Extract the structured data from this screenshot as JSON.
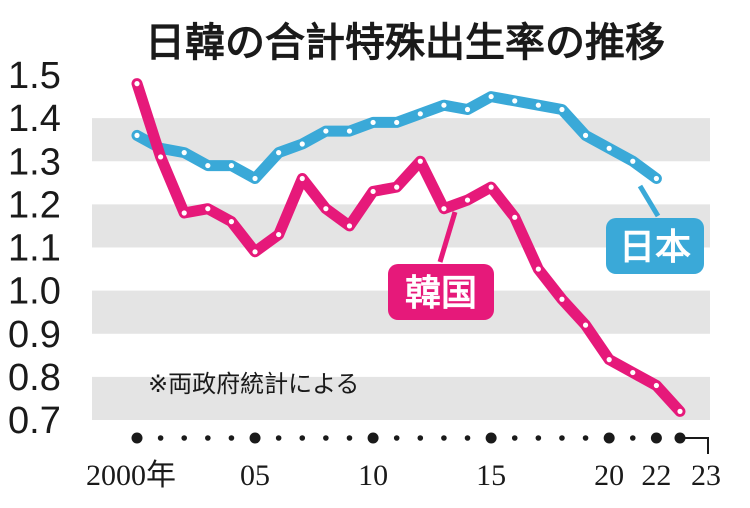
{
  "title": "日韓の合計特殊出生率の推移",
  "note": "※両政府統計による",
  "colors": {
    "japan": "#3aa9d8",
    "korea": "#e6197a",
    "band": "#e4e4e4",
    "text": "#1a1a1a"
  },
  "chart_data": {
    "type": "line",
    "title": "日韓の合計特殊出生率の推移",
    "xlabel": "",
    "ylabel": "",
    "ylim": [
      0.7,
      1.5
    ],
    "xlim": [
      2000,
      2023
    ],
    "yticks": [
      "1.5",
      "1.4",
      "1.3",
      "1.2",
      "1.1",
      "1.0",
      "0.9",
      "0.8",
      "0.7"
    ],
    "xticks": [
      {
        "year": 2000,
        "label": "2000年"
      },
      {
        "year": 2005,
        "label": "05"
      },
      {
        "year": 2010,
        "label": "10"
      },
      {
        "year": 2015,
        "label": "15"
      },
      {
        "year": 2020,
        "label": "20"
      },
      {
        "year": 2022,
        "label": "22"
      },
      {
        "year": 2023,
        "label": "23"
      }
    ],
    "grid": "alternating horizontal bands",
    "series": [
      {
        "name": "日本",
        "color": "#3aa9d8",
        "x": [
          2000,
          2001,
          2002,
          2003,
          2004,
          2005,
          2006,
          2007,
          2008,
          2009,
          2010,
          2011,
          2012,
          2013,
          2014,
          2015,
          2016,
          2017,
          2018,
          2019,
          2020,
          2021,
          2022
        ],
        "values": [
          1.36,
          1.33,
          1.32,
          1.29,
          1.29,
          1.26,
          1.32,
          1.34,
          1.37,
          1.37,
          1.39,
          1.39,
          1.41,
          1.43,
          1.42,
          1.45,
          1.44,
          1.43,
          1.42,
          1.36,
          1.33,
          1.3,
          1.26
        ]
      },
      {
        "name": "韓国",
        "color": "#e6197a",
        "x": [
          2000,
          2001,
          2002,
          2003,
          2004,
          2005,
          2006,
          2007,
          2008,
          2009,
          2010,
          2011,
          2012,
          2013,
          2014,
          2015,
          2016,
          2017,
          2018,
          2019,
          2020,
          2021,
          2022,
          2023
        ],
        "values": [
          1.48,
          1.31,
          1.18,
          1.19,
          1.16,
          1.09,
          1.13,
          1.26,
          1.19,
          1.15,
          1.23,
          1.24,
          1.3,
          1.19,
          1.21,
          1.24,
          1.17,
          1.05,
          0.98,
          0.92,
          0.84,
          0.81,
          0.78,
          0.72
        ]
      }
    ]
  }
}
